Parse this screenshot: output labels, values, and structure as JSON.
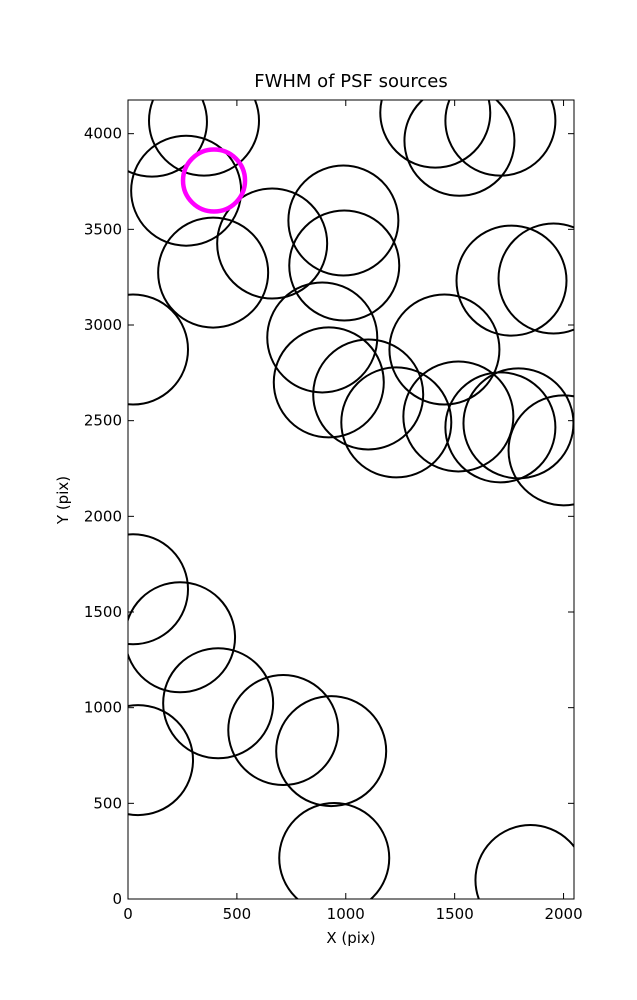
{
  "chart_data": {
    "type": "scatter",
    "title": "FWHM of PSF sources",
    "x_label": "X (pix)",
    "y_label": "Y (pix)",
    "xlim": [
      0,
      2048
    ],
    "ylim": [
      0,
      4176
    ],
    "xticks": [
      0,
      500,
      1000,
      1500,
      2000
    ],
    "yticks": [
      0,
      500,
      1000,
      1500,
      2000,
      2500,
      3000,
      3500,
      4000
    ],
    "series": [
      {
        "color": "#000000",
        "x": [
          110,
          349,
          267,
          391,
          662,
          989,
          993,
          23,
          892,
          922,
          1103,
          1232,
          1453,
          1517,
          1710,
          1793,
          2000,
          1411,
          1522,
          1710,
          1761,
          1954,
          23,
          239,
          414,
          713,
          933,
          46,
          947,
          1848
        ],
        "values": [
          4063,
          4068,
          3702,
          3274,
          3426,
          3546,
          3311,
          2872,
          2935,
          2700,
          2637,
          2491,
          2872,
          2522,
          2465,
          2486,
          2345,
          4110,
          3963,
          4068,
          3232,
          3243,
          1619,
          1368,
          1023,
          883,
          773,
          726,
          214,
          99
        ]
      },
      {
        "color": "#ff00ff",
        "x": [
          395
        ],
        "values": [
          3755
        ]
      }
    ]
  }
}
